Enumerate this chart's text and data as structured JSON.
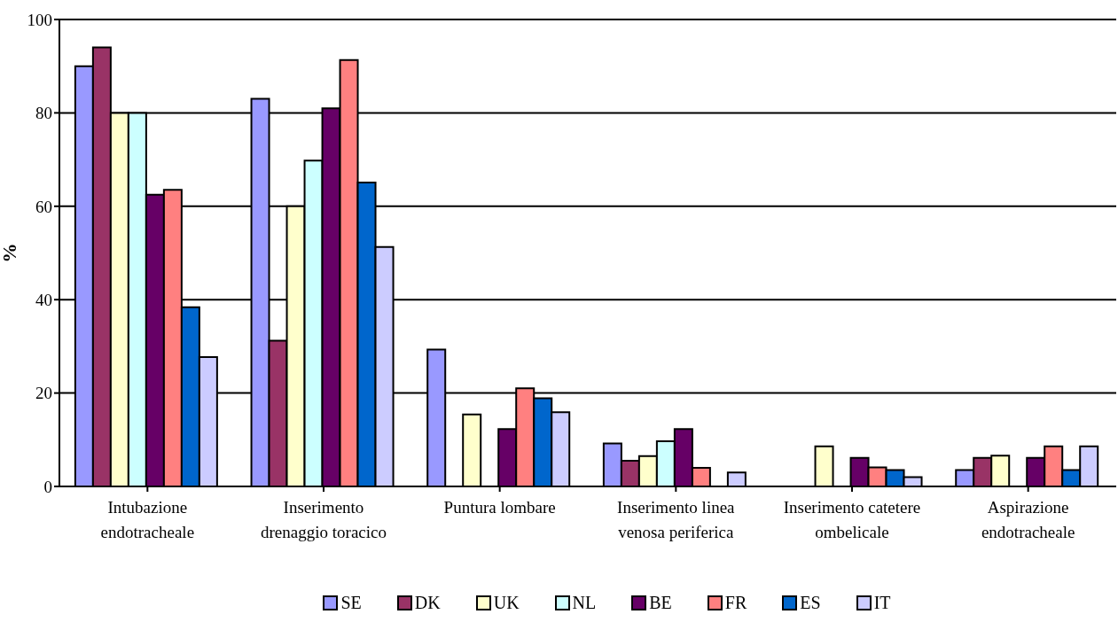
{
  "chart_data": {
    "type": "bar",
    "ylabel": "%",
    "categories": [
      "Intubazione endotracheale",
      "Inserimento drenaggio toracico",
      "Puntura lombare",
      "Inserimento linea venosa periferica",
      "Inserimento catetere ombelicale",
      "Aspirazione endotracheale"
    ],
    "series": [
      {
        "name": "SE",
        "color": "#9999ff",
        "values": [
          90,
          83,
          29.3,
          9.2,
          0,
          3.5
        ]
      },
      {
        "name": "DK",
        "color": "#993366",
        "values": [
          94,
          31.2,
          0,
          5.5,
          0,
          6.1
        ]
      },
      {
        "name": "UK",
        "color": "#ffffcc",
        "values": [
          80,
          60,
          15.4,
          6.5,
          8.6,
          6.6
        ]
      },
      {
        "name": "NL",
        "color": "#ccffff",
        "values": [
          80,
          69.8,
          0,
          9.7,
          0,
          0
        ]
      },
      {
        "name": "BE",
        "color": "#660066",
        "values": [
          62.5,
          81,
          12.3,
          12.3,
          6.1,
          6.1
        ]
      },
      {
        "name": "FR",
        "color": "#ff8080",
        "values": [
          63.5,
          91.3,
          21,
          4,
          4.1,
          8.6
        ]
      },
      {
        "name": "ES",
        "color": "#0066cc",
        "values": [
          38.4,
          65.1,
          18.9,
          0,
          3.5,
          3.5
        ]
      },
      {
        "name": "IT",
        "color": "#ccccff",
        "values": [
          27.7,
          51.3,
          15.9,
          3,
          2,
          8.6
        ]
      }
    ],
    "ylim": [
      0,
      100
    ],
    "yticks": [
      0,
      20,
      40,
      60,
      80,
      100
    ],
    "grid": "y",
    "legend": "bottom"
  }
}
